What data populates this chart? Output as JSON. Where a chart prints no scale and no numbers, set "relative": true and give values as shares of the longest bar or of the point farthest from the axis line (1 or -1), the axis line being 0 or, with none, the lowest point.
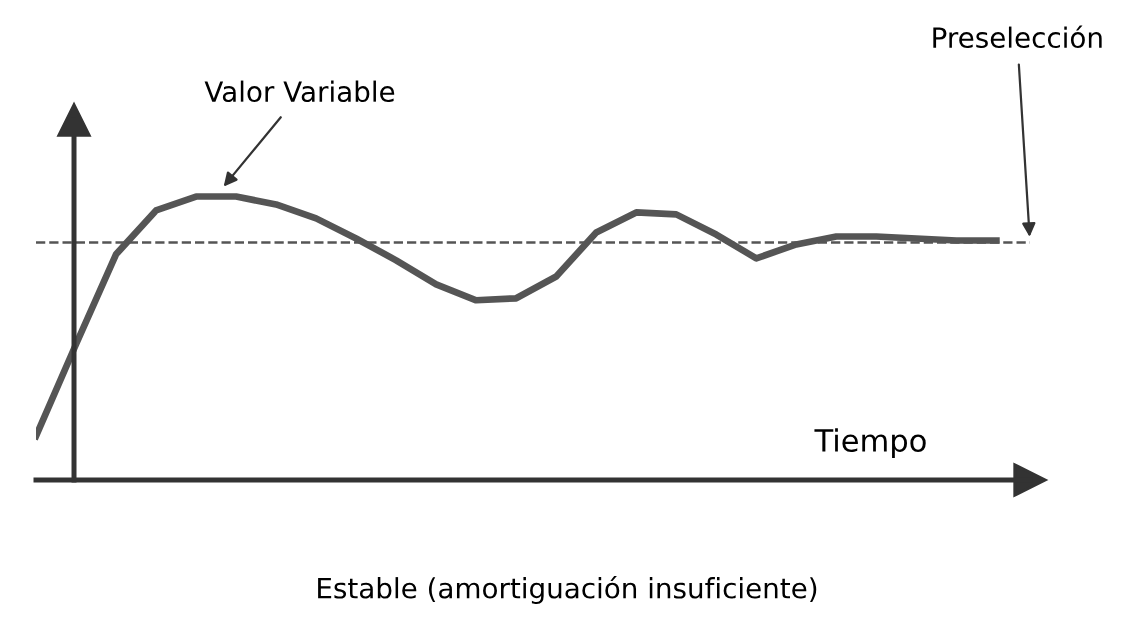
{
  "chart_data": {
    "type": "line",
    "relative": true,
    "xlabel": "Tiempo",
    "categories": [
      null,
      null,
      null,
      null,
      null,
      null,
      null,
      null,
      null,
      null,
      null,
      null,
      null,
      null,
      null,
      null,
      null,
      null,
      null,
      null,
      null,
      null,
      null,
      null,
      null
    ],
    "series": [
      {
        "color": "#555555",
        "values": [
          0.155,
          0.479,
          0.796,
          0.951,
          1.0,
          1.0,
          0.972,
          0.923,
          0.852,
          0.775,
          0.69,
          0.634,
          0.641,
          0.718,
          0.873,
          0.944,
          0.937,
          0.866,
          0.782,
          0.831,
          0.859,
          0.859,
          0.852,
          0.845,
          0.845
        ]
      }
    ],
    "ref_lines": [
      {
        "axis": "y",
        "value": 0.838,
        "label": "Preselección",
        "color": "#555555",
        "line_style": "dashed"
      }
    ],
    "annotations": [
      "Valor Variable",
      "Estable (amortiguación insuficiente)"
    ],
    "grid": false,
    "legend": false,
    "marker": "none",
    "line_style": "solid"
  }
}
